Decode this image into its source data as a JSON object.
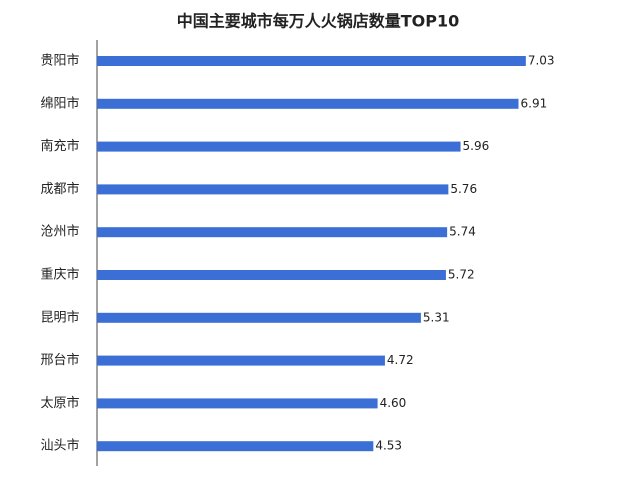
{
  "chart_data": {
    "type": "bar",
    "orientation": "horizontal",
    "title": "中国主要城市每万人火锅店数量TOP10",
    "categories": [
      "贵阳市",
      "绵阳市",
      "南充市",
      "成都市",
      "沧州市",
      "重庆市",
      "昆明市",
      "邢台市",
      "太原市",
      "汕头市"
    ],
    "values": [
      7.03,
      6.91,
      5.96,
      5.76,
      5.74,
      5.72,
      5.31,
      4.72,
      4.6,
      4.53
    ],
    "value_labels": [
      "7.03",
      "6.91",
      "5.96",
      "5.76",
      "5.74",
      "5.72",
      "5.31",
      "4.72",
      "4.60",
      "4.53"
    ],
    "color": "#3b6fd6"
  }
}
